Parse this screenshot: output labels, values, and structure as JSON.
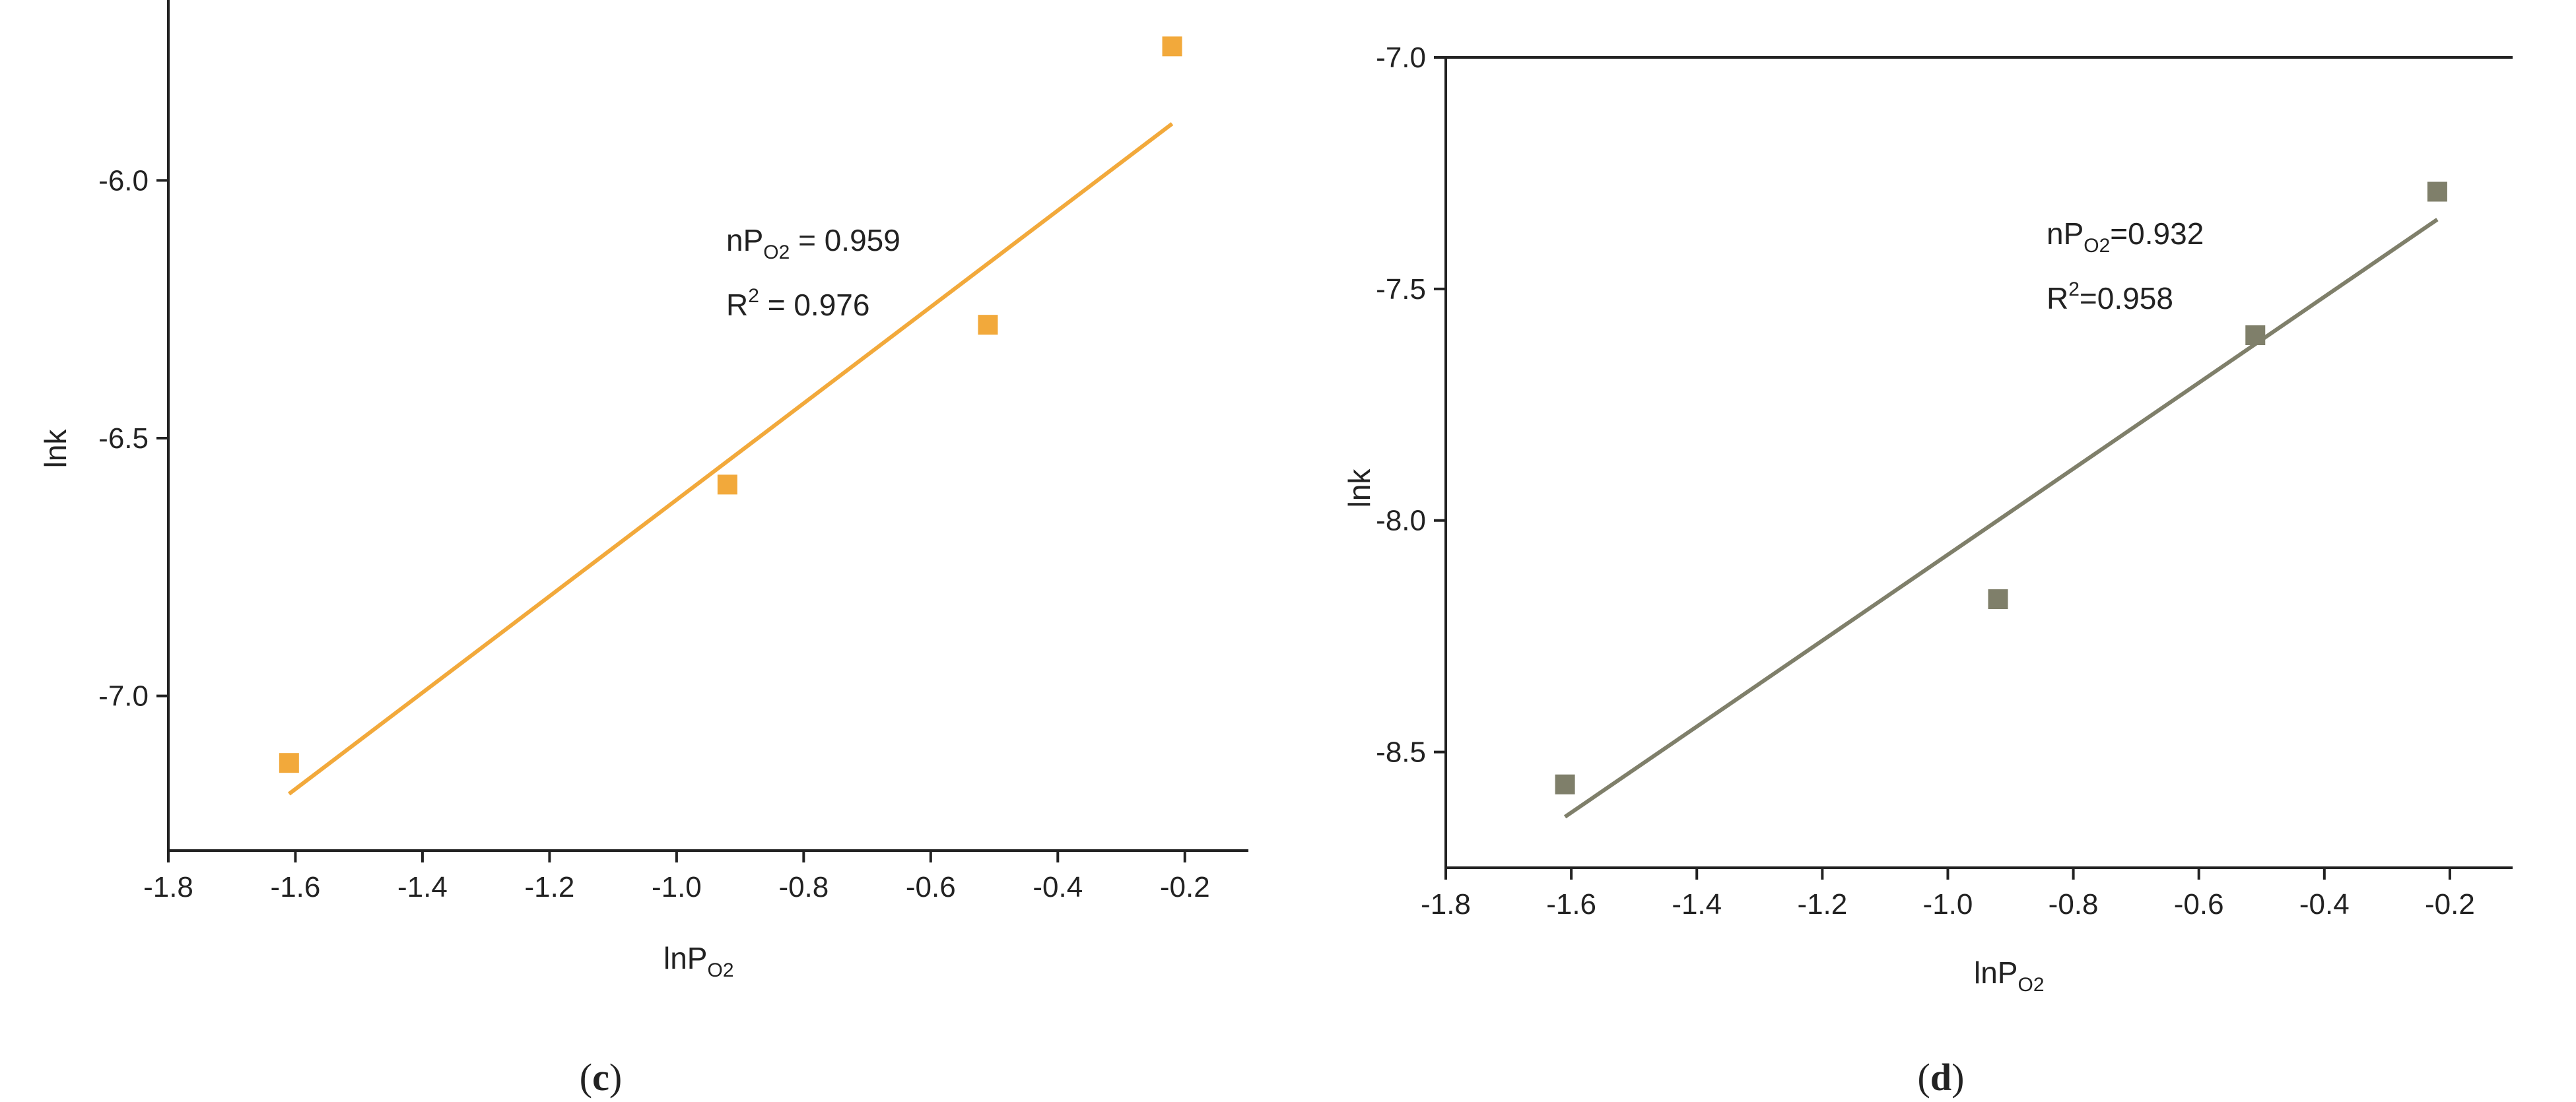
{
  "chart_data": [
    {
      "type": "scatter",
      "panel_label": {
        "open": "(",
        "letter": "c",
        "close": ")"
      },
      "xlabel": {
        "main": "lnP",
        "sub": "O2"
      },
      "ylabel": "lnk",
      "xlim": [
        -1.8,
        -0.1
      ],
      "ylim": [
        -7.3,
        -5.65
      ],
      "xticks": [
        "-1.8",
        "-1.6",
        "-1.4",
        "-1.2",
        "-1.0",
        "-0.8",
        "-0.6",
        "-0.4",
        "-0.2"
      ],
      "xtick_values": [
        -1.8,
        -1.6,
        -1.4,
        -1.2,
        -1.0,
        -0.8,
        -0.6,
        -0.4,
        -0.2
      ],
      "yticks": [
        "-7.0",
        "-6.5",
        "-6.0"
      ],
      "ytick_values": [
        -7.0,
        -6.5,
        -6.0
      ],
      "points": {
        "x": [
          -1.61,
          -0.92,
          -0.51,
          -0.22
        ],
        "y": [
          -7.13,
          -6.59,
          -6.28,
          -5.74
        ]
      },
      "fit_line": {
        "x": [
          -1.61,
          -0.22
        ],
        "y": [
          -7.19,
          -5.89
        ]
      },
      "annotation": {
        "n_label": "nP",
        "n_sub": "O2",
        "n_value": " = 0.959",
        "r_label": "R",
        "r_sup": "2",
        "r_value": " = 0.976"
      },
      "color": "#F2A93B",
      "marker": "square"
    },
    {
      "type": "scatter",
      "panel_label": {
        "open": "(",
        "letter": "d",
        "close": ")"
      },
      "xlabel": {
        "main": "lnP",
        "sub": "O2"
      },
      "ylabel": "lnk",
      "xlim": [
        -1.8,
        -0.1
      ],
      "ylim": [
        -8.75,
        -7.0
      ],
      "xticks": [
        "-1.8",
        "-1.6",
        "-1.4",
        "-1.2",
        "-1.0",
        "-0.8",
        "-0.6",
        "-0.4",
        "-0.2"
      ],
      "xtick_values": [
        -1.8,
        -1.6,
        -1.4,
        -1.2,
        -1.0,
        -0.8,
        -0.6,
        -0.4,
        -0.2
      ],
      "yticks": [
        "-8.5",
        "-8.0",
        "-7.5",
        "-7.0"
      ],
      "ytick_values": [
        -8.5,
        -8.0,
        -7.5,
        -7.0
      ],
      "points": {
        "x": [
          -1.61,
          -0.92,
          -0.51,
          -0.22
        ],
        "y": [
          -8.57,
          -8.17,
          -7.6,
          -7.29
        ]
      },
      "fit_line": {
        "x": [
          -1.61,
          -0.22
        ],
        "y": [
          -8.64,
          -7.35
        ]
      },
      "annotation": {
        "n_label": "nP",
        "n_sub": "O2",
        "n_value": "=0.932",
        "r_label": "R",
        "r_sup": "2",
        "r_value": "=0.958"
      },
      "color": "#7F7F6A",
      "marker": "square"
    }
  ]
}
